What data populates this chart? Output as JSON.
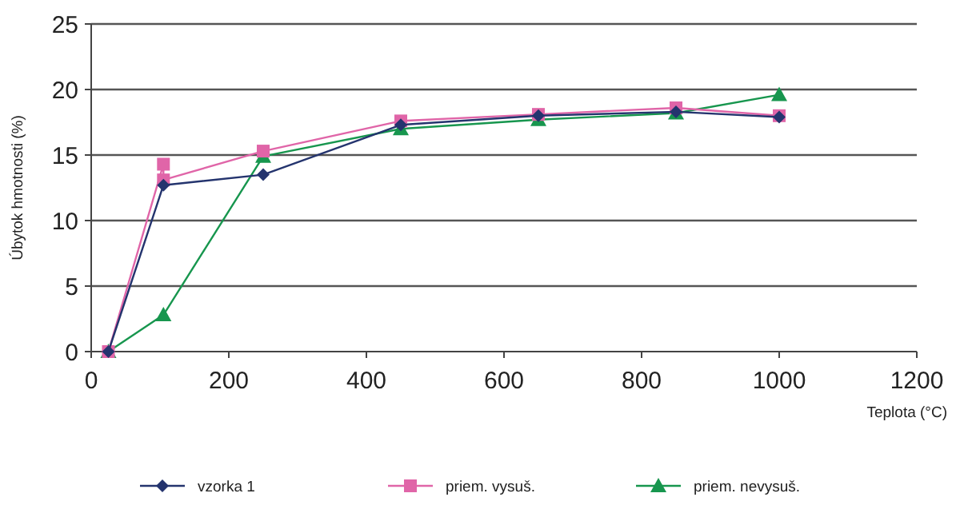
{
  "chart_data": {
    "type": "line",
    "xlabel": "Teplota (°C)",
    "ylabel": "Úbytok hmotnosti (%)",
    "xlim": [
      0,
      1200
    ],
    "xticks": [
      0,
      200,
      400,
      600,
      800,
      1000,
      1200
    ],
    "ylim": [
      0,
      25
    ],
    "yticks": [
      0,
      5,
      10,
      15,
      20,
      25
    ],
    "grid": "y",
    "legend": "bottom",
    "series": [
      {
        "name": "vzorka 1",
        "color": "#24346e",
        "marker": "diamond",
        "x": [
          25,
          105,
          250,
          450,
          650,
          850,
          1000
        ],
        "values": [
          0,
          12.7,
          13.5,
          17.3,
          18,
          18.3,
          17.9
        ]
      },
      {
        "name": "priem. vysuš.",
        "color": "#e065a8",
        "marker": "square",
        "x": [
          25,
          105,
          105,
          250,
          450,
          650,
          850,
          1000
        ],
        "values": [
          0,
          14.3,
          13.1,
          15.3,
          17.6,
          18.1,
          18.6,
          18
        ]
      },
      {
        "name": "priem. nevysuš.",
        "color": "#17964e",
        "marker": "triangle",
        "x": [
          25,
          105,
          250,
          450,
          650,
          850,
          1000
        ],
        "values": [
          0,
          2.8,
          14.9,
          17.0,
          17.7,
          18.2,
          19.6
        ]
      }
    ]
  }
}
